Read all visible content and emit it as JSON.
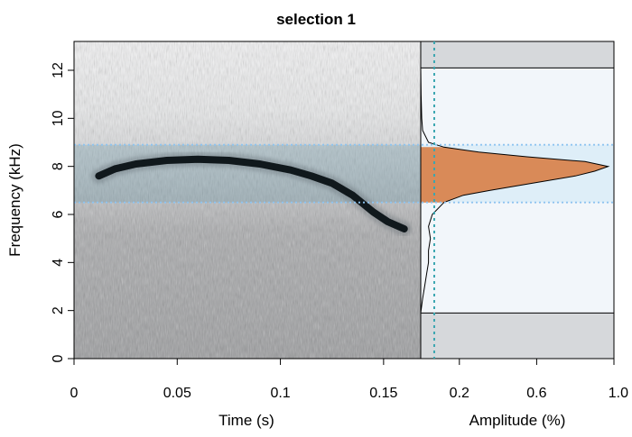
{
  "title": "selection 1",
  "colors": {
    "band_line": "#8ec4f0",
    "band_fill": "#d8ecf8",
    "amplitude_fill": "#d98a58",
    "threshold_line": "#3ba6b0",
    "outside_range": "#d6d8db",
    "spectrogram_dark": "#10181c"
  },
  "chart_data": [
    {
      "type": "heatmap",
      "name": "spectrogram",
      "xlabel": "Time (s)",
      "ylabel": "Frequency (kHz)",
      "xlim": [
        0,
        0.168
      ],
      "ylim": [
        0,
        13.2
      ],
      "x_ticks": [
        0,
        0.05,
        0.1,
        0.15
      ],
      "x_tick_labels": [
        "0",
        "0.05",
        "0.1",
        "0.15"
      ],
      "y_ticks": [
        0,
        2,
        4,
        6,
        8,
        10,
        12
      ],
      "y_tick_labels": [
        "0",
        "2",
        "4",
        "6",
        "8",
        "10",
        "12"
      ],
      "frequency_band_khz": [
        6.5,
        8.9
      ],
      "call_contour": {
        "time_s": [
          0.012,
          0.02,
          0.03,
          0.045,
          0.06,
          0.075,
          0.09,
          0.105,
          0.115,
          0.125,
          0.135,
          0.145,
          0.152,
          0.16
        ],
        "frequency_khz": [
          7.6,
          7.9,
          8.1,
          8.25,
          8.3,
          8.25,
          8.1,
          7.85,
          7.6,
          7.3,
          6.8,
          6.1,
          5.7,
          5.4
        ]
      }
    },
    {
      "type": "area",
      "name": "mean-spectrum",
      "xlabel": "Amplitude (%)",
      "xlim": [
        0,
        1.0
      ],
      "ylim": [
        0,
        13.2
      ],
      "x_ticks": [
        0.2,
        0.6,
        1.0
      ],
      "x_tick_labels": [
        "0.2",
        "0.6",
        "1.0"
      ],
      "threshold_amplitude": 0.07,
      "frequency_range_khz": [
        1.9,
        12.1
      ],
      "frequency_khz": [
        1.9,
        2.5,
        3.0,
        3.5,
        4.0,
        4.5,
        5.0,
        5.5,
        6.0,
        6.5,
        6.8,
        7.0,
        7.3,
        7.6,
        7.8,
        8.0,
        8.2,
        8.4,
        8.6,
        8.8,
        9.0,
        9.5,
        10.0,
        11.0,
        12.1
      ],
      "amplitude": [
        0.0,
        0.01,
        0.02,
        0.03,
        0.04,
        0.04,
        0.05,
        0.04,
        0.06,
        0.12,
        0.22,
        0.36,
        0.58,
        0.8,
        0.9,
        0.97,
        0.85,
        0.55,
        0.3,
        0.12,
        0.04,
        0.01,
        0.005,
        0.002,
        0.0
      ]
    }
  ]
}
